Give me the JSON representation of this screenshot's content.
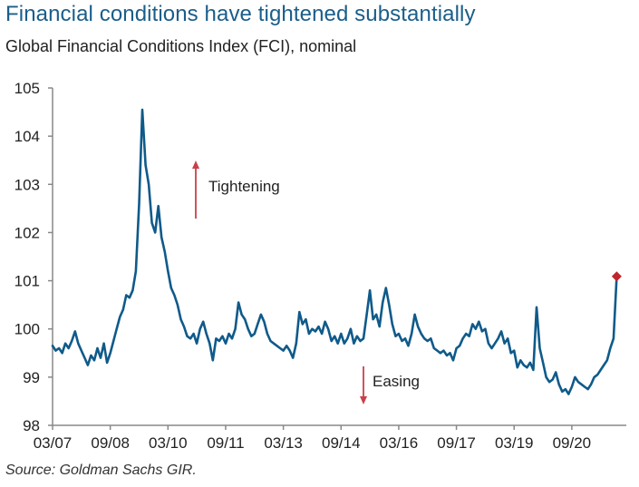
{
  "chart_data": {
    "type": "line",
    "title": "Financial conditions have tightened substantially",
    "subtitle": "Global Financial Conditions Index (FCI), nominal",
    "source": "Source: Goldman Sachs GIR.",
    "xlabel": "",
    "ylabel": "",
    "ylim": [
      98,
      105
    ],
    "yticks": [
      98,
      99,
      100,
      101,
      102,
      103,
      104,
      105
    ],
    "xlim_months_from_mar2007": [
      0,
      179
    ],
    "xticks": [
      {
        "label": "03/07",
        "month": 0
      },
      {
        "label": "09/08",
        "month": 18
      },
      {
        "label": "03/10",
        "month": 36
      },
      {
        "label": "09/11",
        "month": 54
      },
      {
        "label": "03/13",
        "month": 72
      },
      {
        "label": "09/14",
        "month": 90
      },
      {
        "label": "03/16",
        "month": 108
      },
      {
        "label": "09/17",
        "month": 126
      },
      {
        "label": "03/19",
        "month": 144
      },
      {
        "label": "09/20",
        "month": 162
      }
    ],
    "grid": false,
    "series": [
      {
        "name": "Global FCI (nominal)",
        "color": "#0f5a8a",
        "x_unit": "months since 03/2007",
        "points": [
          [
            0,
            99.65
          ],
          [
            1,
            99.55
          ],
          [
            2,
            99.6
          ],
          [
            3,
            99.5
          ],
          [
            4,
            99.7
          ],
          [
            5,
            99.6
          ],
          [
            6,
            99.75
          ],
          [
            7,
            99.95
          ],
          [
            8,
            99.7
          ],
          [
            9,
            99.55
          ],
          [
            10,
            99.4
          ],
          [
            11,
            99.25
          ],
          [
            12,
            99.45
          ],
          [
            13,
            99.35
          ],
          [
            14,
            99.6
          ],
          [
            15,
            99.4
          ],
          [
            16,
            99.7
          ],
          [
            17,
            99.3
          ],
          [
            18,
            99.5
          ],
          [
            19,
            99.75
          ],
          [
            20,
            100.0
          ],
          [
            21,
            100.25
          ],
          [
            22,
            100.4
          ],
          [
            23,
            100.7
          ],
          [
            24,
            100.65
          ],
          [
            25,
            100.8
          ],
          [
            26,
            101.2
          ],
          [
            27,
            102.6
          ],
          [
            28,
            104.55
          ],
          [
            29,
            103.4
          ],
          [
            30,
            103.0
          ],
          [
            31,
            102.2
          ],
          [
            32,
            102.0
          ],
          [
            33,
            102.55
          ],
          [
            34,
            101.9
          ],
          [
            35,
            101.6
          ],
          [
            36,
            101.2
          ],
          [
            37,
            100.85
          ],
          [
            38,
            100.7
          ],
          [
            39,
            100.5
          ],
          [
            40,
            100.2
          ],
          [
            41,
            100.05
          ],
          [
            42,
            99.85
          ],
          [
            43,
            99.8
          ],
          [
            44,
            99.9
          ],
          [
            45,
            99.7
          ],
          [
            46,
            100.0
          ],
          [
            47,
            100.15
          ],
          [
            48,
            99.9
          ],
          [
            49,
            99.7
          ],
          [
            50,
            99.35
          ],
          [
            51,
            99.8
          ],
          [
            52,
            99.75
          ],
          [
            53,
            99.85
          ],
          [
            54,
            99.7
          ],
          [
            55,
            99.9
          ],
          [
            56,
            99.8
          ],
          [
            57,
            100.0
          ],
          [
            58,
            100.55
          ],
          [
            59,
            100.3
          ],
          [
            60,
            100.2
          ],
          [
            61,
            100.0
          ],
          [
            62,
            99.85
          ],
          [
            63,
            99.9
          ],
          [
            64,
            100.1
          ],
          [
            65,
            100.3
          ],
          [
            66,
            100.15
          ],
          [
            67,
            99.9
          ],
          [
            68,
            99.75
          ],
          [
            69,
            99.7
          ],
          [
            70,
            99.65
          ],
          [
            71,
            99.6
          ],
          [
            72,
            99.55
          ],
          [
            73,
            99.65
          ],
          [
            74,
            99.55
          ],
          [
            75,
            99.4
          ],
          [
            76,
            99.7
          ],
          [
            77,
            100.35
          ],
          [
            78,
            100.1
          ],
          [
            79,
            100.2
          ],
          [
            80,
            99.9
          ],
          [
            81,
            100.0
          ],
          [
            82,
            99.95
          ],
          [
            83,
            100.05
          ],
          [
            84,
            99.9
          ],
          [
            85,
            100.15
          ],
          [
            86,
            100.0
          ],
          [
            87,
            99.75
          ],
          [
            88,
            99.85
          ],
          [
            89,
            99.7
          ],
          [
            90,
            99.9
          ],
          [
            91,
            99.7
          ],
          [
            92,
            99.8
          ],
          [
            93,
            100.0
          ],
          [
            94,
            99.7
          ],
          [
            95,
            99.85
          ],
          [
            96,
            99.75
          ],
          [
            97,
            99.8
          ],
          [
            98,
            100.3
          ],
          [
            99,
            100.8
          ],
          [
            100,
            100.2
          ],
          [
            101,
            100.3
          ],
          [
            102,
            100.05
          ],
          [
            103,
            100.55
          ],
          [
            104,
            100.85
          ],
          [
            105,
            100.5
          ],
          [
            106,
            100.1
          ],
          [
            107,
            99.85
          ],
          [
            108,
            99.9
          ],
          [
            109,
            99.75
          ],
          [
            110,
            99.8
          ],
          [
            111,
            99.65
          ],
          [
            112,
            99.9
          ],
          [
            113,
            100.3
          ],
          [
            114,
            100.05
          ],
          [
            115,
            99.9
          ],
          [
            116,
            99.8
          ],
          [
            117,
            99.75
          ],
          [
            118,
            99.8
          ],
          [
            119,
            99.6
          ],
          [
            120,
            99.55
          ],
          [
            121,
            99.5
          ],
          [
            122,
            99.55
          ],
          [
            123,
            99.45
          ],
          [
            124,
            99.5
          ],
          [
            125,
            99.35
          ],
          [
            126,
            99.6
          ],
          [
            127,
            99.65
          ],
          [
            128,
            99.8
          ],
          [
            129,
            99.9
          ],
          [
            130,
            99.85
          ],
          [
            131,
            100.1
          ],
          [
            132,
            100.0
          ],
          [
            133,
            100.15
          ],
          [
            134,
            99.95
          ],
          [
            135,
            100.0
          ],
          [
            136,
            99.7
          ],
          [
            137,
            99.6
          ],
          [
            138,
            99.7
          ],
          [
            139,
            99.8
          ],
          [
            140,
            99.95
          ],
          [
            141,
            99.7
          ],
          [
            142,
            99.8
          ],
          [
            143,
            99.5
          ],
          [
            144,
            99.55
          ],
          [
            145,
            99.2
          ],
          [
            146,
            99.35
          ],
          [
            147,
            99.25
          ],
          [
            148,
            99.2
          ],
          [
            149,
            99.3
          ],
          [
            150,
            99.15
          ],
          [
            151,
            100.45
          ],
          [
            152,
            99.6
          ],
          [
            153,
            99.3
          ],
          [
            154,
            99.0
          ],
          [
            155,
            98.9
          ],
          [
            156,
            98.95
          ],
          [
            157,
            99.1
          ],
          [
            158,
            98.85
          ],
          [
            159,
            98.7
          ],
          [
            160,
            98.75
          ],
          [
            161,
            98.65
          ],
          [
            162,
            98.8
          ],
          [
            163,
            99.0
          ],
          [
            164,
            98.9
          ],
          [
            165,
            98.85
          ],
          [
            166,
            98.8
          ],
          [
            167,
            98.75
          ],
          [
            168,
            98.85
          ],
          [
            169,
            99.0
          ],
          [
            170,
            99.05
          ],
          [
            171,
            99.15
          ],
          [
            172,
            99.25
          ],
          [
            173,
            99.35
          ],
          [
            174,
            99.6
          ],
          [
            175,
            99.8
          ],
          [
            176,
            101.09
          ]
        ]
      }
    ],
    "highlight_point": {
      "month": 176,
      "value": 101.09,
      "marker": "diamond",
      "color": "#c0262d"
    },
    "annotations": [
      {
        "text": "Tightening",
        "arrow": "up",
        "arrow_color": "#c9404a"
      },
      {
        "text": "Easing",
        "arrow": "down",
        "arrow_color": "#c9404a"
      }
    ],
    "legend": "none"
  }
}
